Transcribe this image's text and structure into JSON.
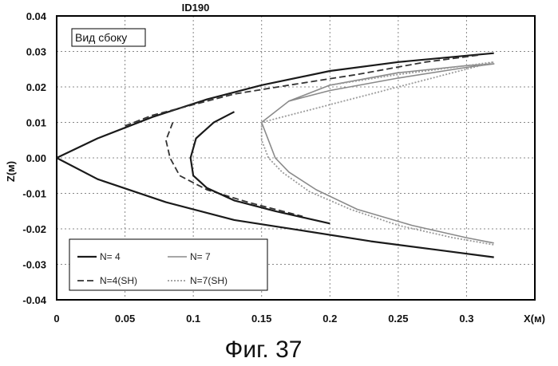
{
  "chart_data": {
    "type": "line",
    "title": "ID190",
    "inner_label": "Вид сбоку",
    "xlabel": "X(м)",
    "ylabel": "Z(м)",
    "caption": "Фиг. 37",
    "xlim": [
      0,
      0.35
    ],
    "ylim": [
      -0.04,
      0.04
    ],
    "x_ticks": [
      0,
      0.05,
      0.1,
      0.15,
      0.2,
      0.25,
      0.3
    ],
    "x_tick_labels": [
      "0",
      "0.05",
      "0.1",
      "0.15",
      "0.2",
      "0.25",
      "0.3"
    ],
    "y_ticks": [
      0.04,
      0.03,
      0.02,
      0.01,
      0.0,
      -0.01,
      -0.02,
      -0.03,
      -0.04
    ],
    "y_tick_labels": [
      "0.04",
      "0.03",
      "0.02",
      "0.01",
      "0.00",
      "-0.01",
      "-0.02",
      "-0.03",
      "-0.04"
    ],
    "grid": true,
    "legend_position": "bottom-left",
    "series": [
      {
        "name": "N= 4",
        "style": "solid-dark",
        "x": [
          0,
          0.03,
          0.07,
          0.11,
          0.15,
          0.2,
          0.25,
          0.3,
          0.32
        ],
        "y": [
          0,
          0.0055,
          0.0115,
          0.0165,
          0.0205,
          0.0245,
          0.027,
          0.0288,
          0.0295
        ],
        "x2": [
          0,
          0.03,
          0.08,
          0.13,
          0.18,
          0.23,
          0.28,
          0.32
        ],
        "y2": [
          0,
          -0.006,
          -0.0125,
          -0.0175,
          -0.0205,
          -0.0235,
          -0.026,
          -0.028
        ]
      },
      {
        "name": "N= 7",
        "style": "solid-light",
        "x": [
          0.17,
          0.2,
          0.25,
          0.3,
          0.32,
          0.3,
          0.25,
          0.2,
          0.17,
          0.15,
          0.155,
          0.16,
          0.17,
          0.19,
          0.22,
          0.26,
          0.3,
          0.32
        ],
        "y": [
          0.016,
          0.019,
          0.0225,
          0.0255,
          0.0265,
          0.026,
          0.024,
          0.0205,
          0.016,
          0.01,
          0.005,
          0.0,
          -0.004,
          -0.009,
          -0.0145,
          -0.019,
          -0.0225,
          -0.024
        ]
      },
      {
        "name": "N=4(SH)",
        "style": "dashed-dark",
        "x": [
          0.05,
          0.07,
          0.1,
          0.13,
          0.17,
          0.22,
          0.27,
          0.31,
          0.085,
          0.08,
          0.083,
          0.09,
          0.11,
          0.14,
          0.18
        ],
        "y": [
          0.009,
          0.012,
          0.015,
          0.018,
          0.0205,
          0.0235,
          0.027,
          0.029,
          0.01,
          0.005,
          0.0,
          -0.005,
          -0.009,
          -0.0125,
          -0.0165
        ]
      },
      {
        "name": "N=7(SH)",
        "style": "dotted-light",
        "x": [
          0.2,
          0.25,
          0.3,
          0.32,
          0.15,
          0.15,
          0.155,
          0.165,
          0.185,
          0.215,
          0.25,
          0.29,
          0.32
        ],
        "y": [
          0.0205,
          0.0235,
          0.026,
          0.027,
          0.01,
          0.005,
          0.0,
          -0.004,
          -0.0095,
          -0.0145,
          -0.019,
          -0.0225,
          -0.0245
        ]
      }
    ]
  }
}
